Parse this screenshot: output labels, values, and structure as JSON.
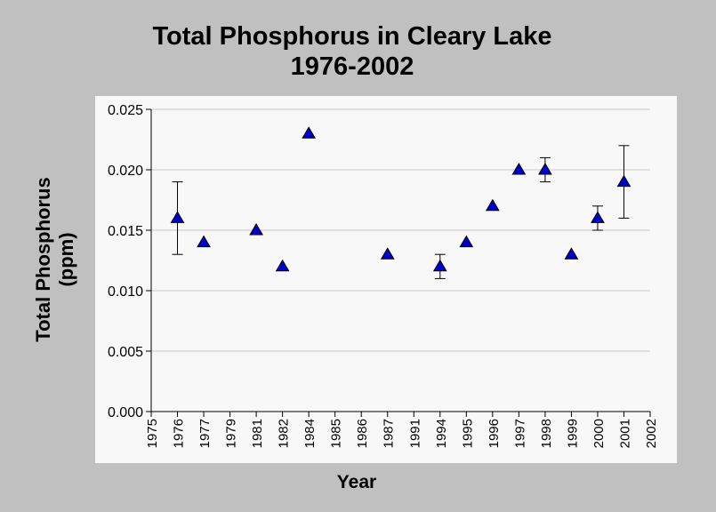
{
  "chart_data": {
    "type": "scatter",
    "title": "Total Phosphorus in Cleary Lake",
    "subtitle": "1976-2002",
    "xlabel": "Year",
    "ylabel": [
      "Total Phosphorus",
      "(ppm)"
    ],
    "ylim": [
      0,
      0.025
    ],
    "yticks": [
      "0.000",
      "0.005",
      "0.010",
      "0.015",
      "0.020",
      "0.025"
    ],
    "categories": [
      "1975",
      "1976",
      "1977",
      "1979",
      "1981",
      "1982",
      "1984",
      "1985",
      "1986",
      "1987",
      "1991",
      "1994",
      "1995",
      "1996",
      "1997",
      "1998",
      "1999",
      "2000",
      "2001",
      "2002"
    ],
    "grid": true,
    "marker": "triangle",
    "colors": {
      "marker": "#0000cc",
      "grid": "#c8c8c8",
      "plot_bg": "#f8f8f8",
      "page_bg": "#c0c0c0"
    },
    "points": [
      {
        "year": "1976",
        "value": 0.016,
        "low": 0.013,
        "high": 0.019
      },
      {
        "year": "1977",
        "value": 0.014
      },
      {
        "year": "1981",
        "value": 0.015
      },
      {
        "year": "1982",
        "value": 0.012
      },
      {
        "year": "1984",
        "value": 0.023
      },
      {
        "year": "1987",
        "value": 0.013
      },
      {
        "year": "1994",
        "value": 0.012,
        "low": 0.011,
        "high": 0.013
      },
      {
        "year": "1995",
        "value": 0.014
      },
      {
        "year": "1996",
        "value": 0.017
      },
      {
        "year": "1997",
        "value": 0.02
      },
      {
        "year": "1998",
        "value": 0.02,
        "low": 0.019,
        "high": 0.021
      },
      {
        "year": "1999",
        "value": 0.013
      },
      {
        "year": "2000",
        "value": 0.016,
        "low": 0.015,
        "high": 0.017
      },
      {
        "year": "2001",
        "value": 0.019,
        "low": 0.016,
        "high": 0.022
      }
    ]
  }
}
